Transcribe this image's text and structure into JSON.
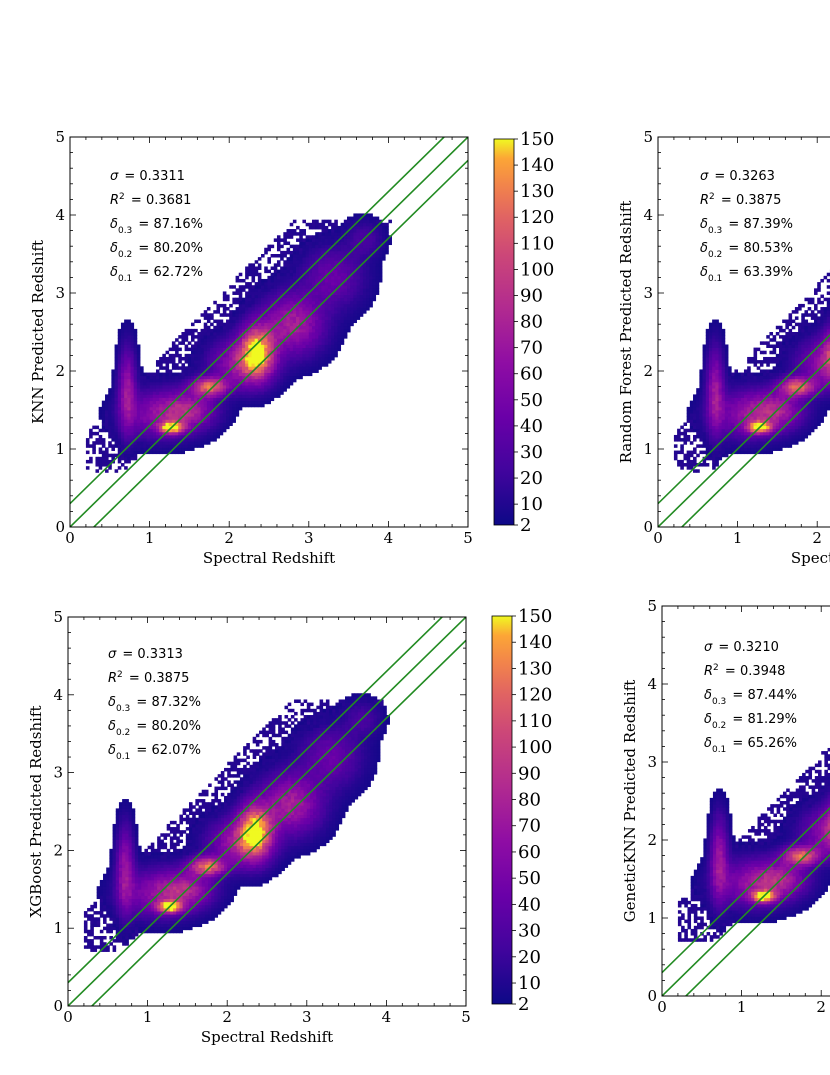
{
  "colors": {
    "line": "#228b22",
    "axis": "#000000",
    "background": "#ffffff"
  },
  "colorbar_ticks": [
    "150",
    "140",
    "130",
    "120",
    "110",
    "100",
    "90",
    "80",
    "70",
    "60",
    "50",
    "40",
    "30",
    "20",
    "10",
    "2"
  ],
  "chart_data": [
    {
      "type": "heatmap",
      "model": "KNN",
      "xlabel": "Spectral Redshift",
      "ylabel": "KNN Predicted Redshift",
      "xlim": [
        0,
        5
      ],
      "ylim": [
        0,
        5
      ],
      "x_ticks": [
        "0",
        "1",
        "2",
        "3",
        "4",
        "5"
      ],
      "y_ticks": [
        "0",
        "1",
        "2",
        "3",
        "4",
        "5"
      ],
      "colorbar_range": [
        2,
        150
      ],
      "reference_lines": [
        {
          "intercept": 0.3,
          "slope": 1
        },
        {
          "intercept": 0.0,
          "slope": 1
        },
        {
          "intercept": -0.3,
          "slope": 1
        }
      ],
      "stats": [
        {
          "symbol": "σ",
          "sub": "",
          "sup": "",
          "value": "0.3311"
        },
        {
          "symbol": "R",
          "sub": "",
          "sup": "2",
          "value": "0.3681"
        },
        {
          "symbol": "δ",
          "sub": "0.3",
          "sup": "",
          "value": "87.16%"
        },
        {
          "symbol": "δ",
          "sub": "0.2",
          "sup": "",
          "value": "80.20%"
        },
        {
          "symbol": "δ",
          "sub": "0.1",
          "sup": "",
          "value": "62.72%"
        }
      ]
    },
    {
      "type": "heatmap",
      "model": "Random Forest",
      "xlabel": "Spectral Redshift",
      "ylabel": "Random Forest Predicted Redshift",
      "xlim": [
        0,
        5
      ],
      "ylim": [
        0,
        5
      ],
      "x_ticks": [
        "0",
        "1",
        "2"
      ],
      "y_ticks": [
        "0",
        "1",
        "2",
        "3",
        "4",
        "5"
      ],
      "colorbar_range": [
        2,
        150
      ],
      "reference_lines": [
        {
          "intercept": 0.3,
          "slope": 1
        },
        {
          "intercept": 0.0,
          "slope": 1
        },
        {
          "intercept": -0.3,
          "slope": 1
        }
      ],
      "stats": [
        {
          "symbol": "σ",
          "sub": "",
          "sup": "",
          "value": "0.3263"
        },
        {
          "symbol": "R",
          "sub": "",
          "sup": "2",
          "value": "0.3875"
        },
        {
          "symbol": "δ",
          "sub": "0.3",
          "sup": "",
          "value": "87.39%"
        },
        {
          "symbol": "δ",
          "sub": "0.2",
          "sup": "",
          "value": "80.53%"
        },
        {
          "symbol": "δ",
          "sub": "0.1",
          "sup": "",
          "value": "63.39%"
        }
      ]
    },
    {
      "type": "heatmap",
      "model": "XGBoost",
      "xlabel": "Spectral Redshift",
      "ylabel": "XGBoost Predicted Redshift",
      "xlim": [
        0,
        5
      ],
      "ylim": [
        0,
        5
      ],
      "x_ticks": [
        "0",
        "1",
        "2",
        "3",
        "4",
        "5"
      ],
      "y_ticks": [
        "0",
        "1",
        "2",
        "3",
        "4",
        "5"
      ],
      "colorbar_range": [
        2,
        150
      ],
      "reference_lines": [
        {
          "intercept": 0.3,
          "slope": 1
        },
        {
          "intercept": 0.0,
          "slope": 1
        },
        {
          "intercept": -0.3,
          "slope": 1
        }
      ],
      "stats": [
        {
          "symbol": "σ",
          "sub": "",
          "sup": "",
          "value": "0.3313"
        },
        {
          "symbol": "R",
          "sub": "",
          "sup": "2",
          "value": "0.3875"
        },
        {
          "symbol": "δ",
          "sub": "0.3",
          "sup": "",
          "value": "87.32%"
        },
        {
          "symbol": "δ",
          "sub": "0.2",
          "sup": "",
          "value": "80.20%"
        },
        {
          "symbol": "δ",
          "sub": "0.1",
          "sup": "",
          "value": "62.07%"
        }
      ]
    },
    {
      "type": "heatmap",
      "model": "GeneticKNN",
      "xlabel": "Spec",
      "ylabel": "GeneticKNN Predicted Redshift",
      "xlim": [
        0,
        5
      ],
      "ylim": [
        0,
        5
      ],
      "x_ticks": [
        "0",
        "1",
        "2"
      ],
      "y_ticks": [
        "0",
        "1",
        "2",
        "3",
        "4",
        "5"
      ],
      "colorbar_range": [
        2,
        150
      ],
      "reference_lines": [
        {
          "intercept": 0.3,
          "slope": 1
        },
        {
          "intercept": 0.0,
          "slope": 1
        },
        {
          "intercept": -0.3,
          "slope": 1
        }
      ],
      "stats": [
        {
          "symbol": "σ",
          "sub": "",
          "sup": "",
          "value": "0.3210"
        },
        {
          "symbol": "R",
          "sub": "",
          "sup": "2",
          "value": "0.3948"
        },
        {
          "symbol": "δ",
          "sub": "0.3",
          "sup": "",
          "value": "87.44%"
        },
        {
          "symbol": "δ",
          "sub": "0.2",
          "sup": "",
          "value": "81.29%"
        },
        {
          "symbol": "δ",
          "sub": "0.1",
          "sup": "",
          "value": "65.26%"
        }
      ]
    }
  ]
}
